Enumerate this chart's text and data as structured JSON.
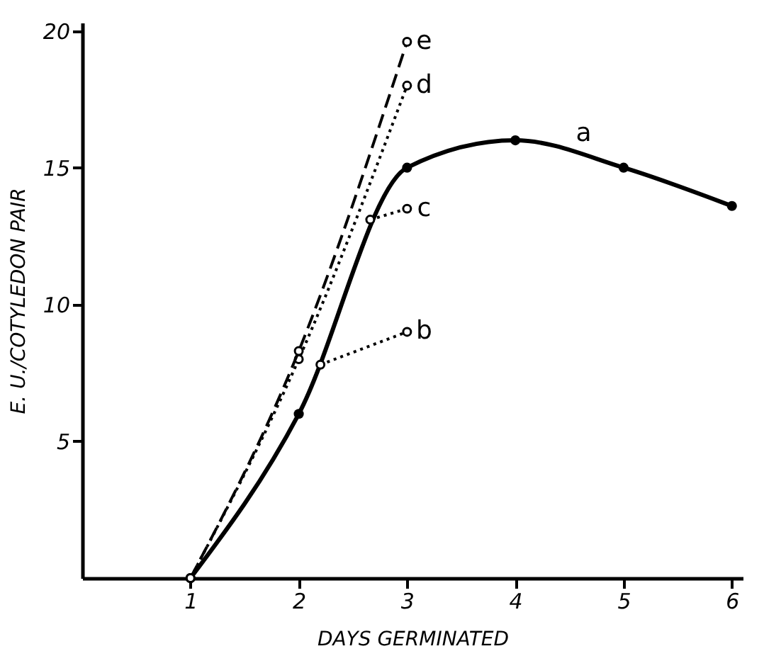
{
  "chart_data": {
    "type": "line",
    "xlabel": "DAYS GERMINATED",
    "ylabel": "E. U./COTYLEDON PAIR",
    "xlim": [
      0,
      6.1
    ],
    "xticks": [
      1,
      2,
      3,
      4,
      5,
      6
    ],
    "ylim": [
      0,
      20.3
    ],
    "yticks": [
      5,
      10,
      15,
      20
    ],
    "grid": false,
    "legend": false,
    "series": [
      {
        "name": "a",
        "color": "#000000",
        "x": [
          1,
          2,
          3,
          4,
          5,
          6
        ],
        "values": [
          0,
          6,
          15,
          16,
          15,
          13.6
        ],
        "line_style": "solid",
        "marker": "circle"
      },
      {
        "name": "b",
        "color": "#000000",
        "x": [
          2.2,
          3
        ],
        "values": [
          7.8,
          9
        ],
        "line_style": "dotted",
        "marker": "circle"
      },
      {
        "name": "c",
        "color": "#000000",
        "x": [
          2.66,
          3
        ],
        "values": [
          13.1,
          13.5
        ],
        "line_style": "dotted",
        "marker": "circle"
      },
      {
        "name": "d",
        "color": "#000000",
        "x": [
          1,
          2,
          3
        ],
        "values": [
          0,
          8,
          18
        ],
        "line_style": "dotted",
        "marker": "circle"
      },
      {
        "name": "e",
        "color": "#000000",
        "x": [
          1,
          2,
          3
        ],
        "values": [
          0,
          8.3,
          19.6
        ],
        "line_style": "dashed",
        "marker": "circle"
      }
    ]
  }
}
